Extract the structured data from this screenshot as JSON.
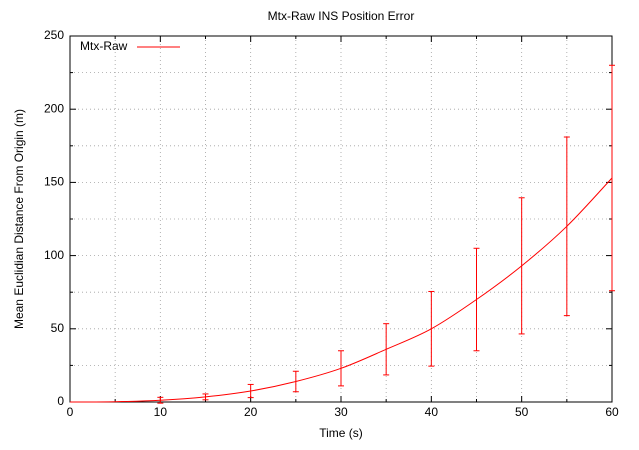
{
  "chart_data": {
    "type": "line",
    "title": "Mtx-Raw INS Position Error",
    "x_label": "Time (s)",
    "y_label": "Mean Euclidian Distance From Origin (m)",
    "x": [
      0,
      5,
      10,
      15,
      20,
      25,
      30,
      35,
      40,
      45,
      50,
      55,
      60
    ],
    "series": [
      {
        "name": "Mtx-Raw",
        "color": "#ff0000",
        "values": [
          0,
          0.2,
          1.2,
          3.5,
          7.5,
          14,
          23,
          36,
          50,
          70,
          93,
          120,
          153
        ],
        "errors": [
          null,
          null,
          2,
          2,
          4.5,
          7,
          12,
          17.5,
          25.5,
          35,
          46.5,
          61,
          77
        ]
      }
    ],
    "xlim": [
      0,
      60
    ],
    "xticks": [
      0,
      10,
      20,
      30,
      40,
      50,
      60
    ],
    "xminorticks": [
      5,
      15,
      25,
      35,
      45,
      55
    ],
    "ylim": [
      0,
      250
    ],
    "yticks": [
      0,
      50,
      100,
      150,
      200,
      250
    ],
    "yminorticks": [
      25,
      75,
      125,
      175,
      225
    ],
    "grid": true,
    "legend": "top-left"
  }
}
